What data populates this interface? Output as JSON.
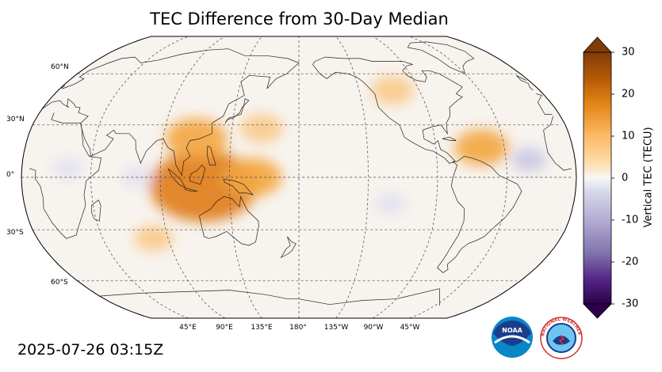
{
  "title": "TEC Difference from 30-Day Median",
  "timestamp": "2025-07-26 03:15Z",
  "map": {
    "projection": "Robinson",
    "central_longitude": 180,
    "parallels_deg": [
      60,
      30,
      0,
      -30,
      -60
    ],
    "meridians_deg": [
      45,
      90,
      135,
      180,
      -135,
      -90,
      -45
    ],
    "lat_labels": [
      "60°N",
      "30°N",
      "0°",
      "30°S",
      "60°S"
    ],
    "lon_labels": [
      "45°E",
      "90°E",
      "135°E",
      "180°",
      "135°W",
      "90°W",
      "45°W"
    ],
    "background_color": "#f7f3ee",
    "anomalies_tecu": [
      {
        "lon": 118,
        "lat": -5,
        "value": 22
      },
      {
        "lon": 112,
        "lat": 22,
        "value": 10
      },
      {
        "lon": 150,
        "lat": 0,
        "value": 9
      },
      {
        "lon": 155,
        "lat": 28,
        "value": 5
      },
      {
        "lon": -60,
        "lat": 17,
        "value": 8
      },
      {
        "lon": -110,
        "lat": 50,
        "value": 5
      },
      {
        "lon": 80,
        "lat": -35,
        "value": 4
      },
      {
        "lon": 30,
        "lat": 5,
        "value": -2
      },
      {
        "lon": 75,
        "lat": 0,
        "value": -2
      },
      {
        "lon": -30,
        "lat": 10,
        "value": -3
      },
      {
        "lon": -120,
        "lat": -15,
        "value": -2
      }
    ]
  },
  "colorbar": {
    "label": "Vertical TEC (TECU)",
    "min": -30,
    "max": 30,
    "ticks": [
      "30",
      "20",
      "10",
      "0",
      "-10",
      "-20",
      "-30"
    ],
    "colors_top_to_bottom": [
      "#7f3b08",
      "#b35806",
      "#e08214",
      "#fdb863",
      "#fee0b6",
      "#f7f7f7",
      "#d8daeb",
      "#b2abd2",
      "#8073ac",
      "#542788",
      "#2d004b"
    ]
  },
  "logos": {
    "noaa_text": "NOAA",
    "nws_text": "NATIONAL WEATHER SERVICE"
  }
}
